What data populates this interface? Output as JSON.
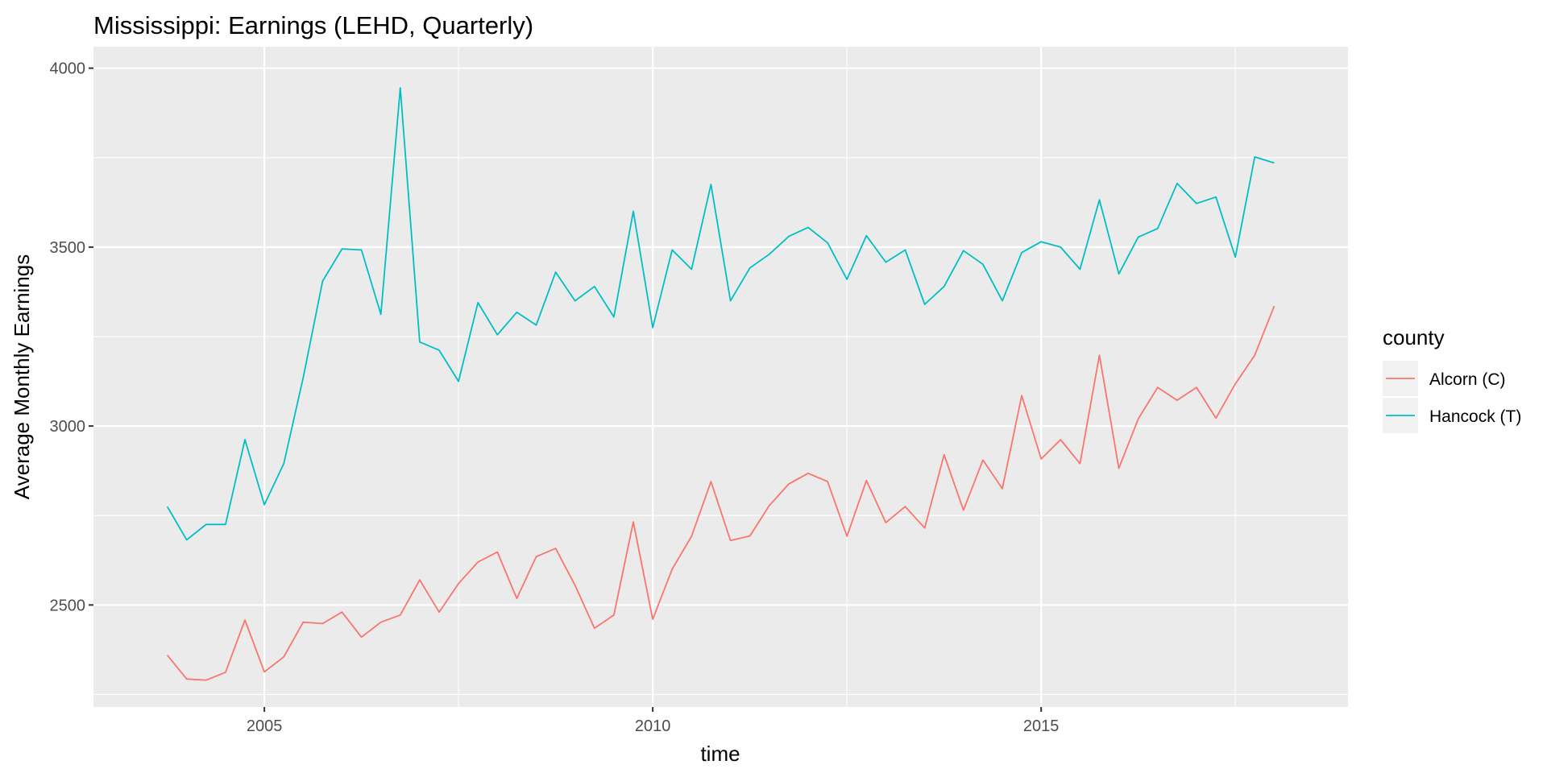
{
  "chart_data": {
    "type": "line",
    "title": "Mississippi: Earnings (LEHD, Quarterly)",
    "xlabel": "time",
    "ylabel": "Average Monthly Earnings",
    "xlim": [
      2002.8,
      2018.95
    ],
    "ylim": [
      2215,
      4060
    ],
    "x_ticks": [
      2005,
      2010,
      2015
    ],
    "x_tick_labels": [
      "2005",
      "2010",
      "2015"
    ],
    "y_ticks": [
      2500,
      3000,
      3500,
      4000
    ],
    "y_tick_labels": [
      "2500",
      "3000",
      "3500",
      "4000"
    ],
    "x_start": 2003.75,
    "x_step": 0.25,
    "grid": true,
    "legend": {
      "title": "county",
      "placement": "right"
    },
    "series": [
      {
        "name": "Alcorn (C)",
        "color": "#F8766D",
        "values": [
          2360,
          2293,
          2290,
          2312,
          2458,
          2313,
          2355,
          2452,
          2448,
          2480,
          2410,
          2452,
          2472,
          2570,
          2480,
          2560,
          2620,
          2648,
          2518,
          2635,
          2658,
          2555,
          2435,
          2472,
          2732,
          2460,
          2600,
          2692,
          2845,
          2680,
          2693,
          2778,
          2838,
          2868,
          2845,
          2692,
          2848,
          2730,
          2775,
          2715,
          2920,
          2765,
          2905,
          2825,
          3085,
          2908,
          2962,
          2895,
          3198,
          2882,
          3020,
          3108,
          3072,
          3108,
          3022,
          3118,
          3198,
          3335
        ]
      },
      {
        "name": "Hancock (T)",
        "color": "#00BFC4",
        "values": [
          2775,
          2682,
          2725,
          2725,
          2962,
          2780,
          2895,
          3135,
          3405,
          3495,
          3492,
          3312,
          3945,
          3235,
          3212,
          3125,
          3345,
          3255,
          3318,
          3282,
          3430,
          3350,
          3390,
          3305,
          3600,
          3275,
          3492,
          3438,
          3675,
          3350,
          3442,
          3480,
          3530,
          3555,
          3512,
          3410,
          3532,
          3458,
          3492,
          3340,
          3390,
          3490,
          3452,
          3350,
          3485,
          3515,
          3500,
          3438,
          3632,
          3425,
          3528,
          3552,
          3678,
          3622,
          3640,
          3472,
          3752,
          3735
        ]
      }
    ]
  }
}
